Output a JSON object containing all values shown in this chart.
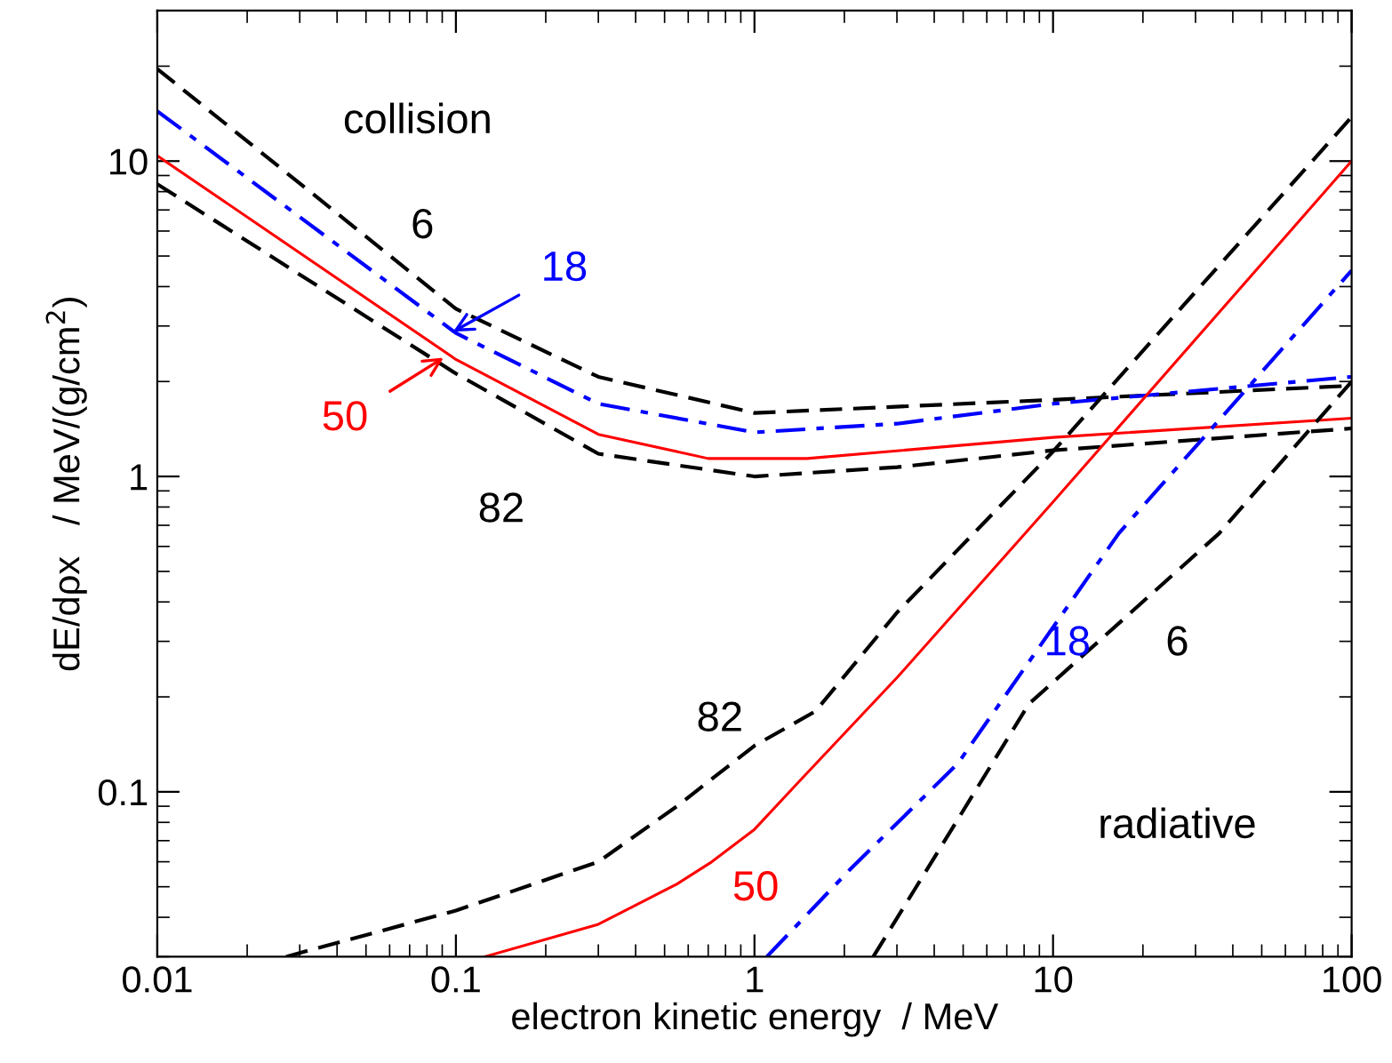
{
  "chart_data": {
    "type": "line",
    "xlabel": "electron kinetic energy  / MeV",
    "ylabel": "dE/dρx   / MeV/(g/cm$^{2}$)",
    "log": "xy",
    "xlim": [
      0.01,
      100
    ],
    "ylim": [
      0.03,
      30
    ],
    "xticks": [
      0.01,
      0.1,
      1,
      10,
      100
    ],
    "yticks": [
      0.1,
      1,
      10
    ],
    "grid": false,
    "legend": false,
    "marker": "none",
    "series": [
      {
        "color": "#000000",
        "line_style": "dashed",
        "x": [
          0.01,
          0.1,
          0.3,
          1,
          10,
          100
        ],
        "values": [
          19.6,
          3.4,
          2.07,
          1.59,
          1.75,
          1.94
        ]
      },
      {
        "color": "#0000ff",
        "line_style": "dashdot",
        "x": [
          0.01,
          0.1,
          0.3,
          1,
          3,
          10,
          100
        ],
        "values": [
          14.4,
          2.85,
          1.7,
          1.38,
          1.47,
          1.7,
          2.07
        ]
      },
      {
        "color": "#ff0000",
        "line_style": "solid",
        "x": [
          0.01,
          0.1,
          0.3,
          0.7,
          1.5,
          10,
          100
        ],
        "values": [
          10.4,
          2.35,
          1.36,
          1.14,
          1.14,
          1.33,
          1.53
        ]
      },
      {
        "color": "#000000",
        "line_style": "dashed",
        "x": [
          0.01,
          0.1,
          0.3,
          1,
          3,
          10,
          100
        ],
        "values": [
          8.45,
          2.12,
          1.18,
          1.0,
          1.07,
          1.21,
          1.42
        ]
      },
      {
        "color": "#000000",
        "line_style": "dashed",
        "x": [
          0.027,
          0.1,
          0.3,
          0.55,
          1,
          1.6,
          3,
          10,
          100
        ],
        "values": [
          0.03,
          0.042,
          0.06,
          0.09,
          0.14,
          0.18,
          0.37,
          1.2,
          13.8
        ]
      },
      {
        "color": "#ff0000",
        "line_style": "solid",
        "x": [
          0.125,
          0.3,
          0.55,
          0.72,
          1,
          1.4,
          3,
          10,
          100
        ],
        "values": [
          0.03,
          0.038,
          0.051,
          0.06,
          0.076,
          0.107,
          0.23,
          0.83,
          10
        ]
      },
      {
        "color": "#0000ff",
        "line_style": "dashdot",
        "x": [
          1.1,
          2.1,
          4.8,
          16.6,
          100
        ],
        "values": [
          0.03,
          0.057,
          0.123,
          0.66,
          4.5
        ]
      },
      {
        "color": "#000000",
        "line_style": "dashed",
        "x": [
          2.5,
          8.3,
          36,
          100
        ],
        "values": [
          0.03,
          0.19,
          0.66,
          2.0
        ]
      }
    ],
    "annotations": [
      "collision",
      "6",
      {
        "text": "18",
        "x": 0.098,
        "y": 2.88
      },
      {
        "text": "50",
        "x": 0.091,
        "y": 2.38
      },
      "82",
      "82",
      "50",
      "18",
      "6",
      "radiative"
    ]
  }
}
